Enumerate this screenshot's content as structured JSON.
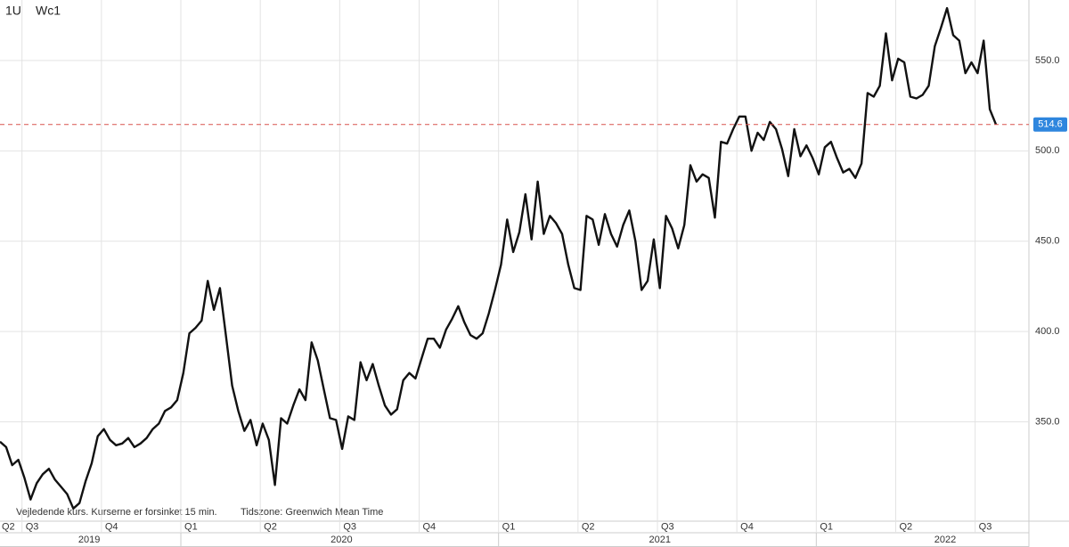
{
  "header": {
    "symbol": "1U",
    "name": "Wc1"
  },
  "footer": {
    "note": "Vejledende kurs. Kurserne er forsinket 15 min.",
    "timezone": "Tidszone: Greenwich Mean Time"
  },
  "chart_data": {
    "type": "line",
    "grid": true,
    "ylim": [
      295,
      583.5
    ],
    "xlim": [
      0,
      168.4
    ],
    "yticks": [
      {
        "value": 350,
        "label": "350.0"
      },
      {
        "value": 400,
        "label": "400.0"
      },
      {
        "value": 450,
        "label": "450.0"
      },
      {
        "value": 500,
        "label": "500.0"
      },
      {
        "value": 550,
        "label": "550.0"
      }
    ],
    "xticks": [
      {
        "value": -9.4,
        "label": "Q2"
      },
      {
        "value": 3.6,
        "label": "Q3"
      },
      {
        "value": 16.6,
        "label": "Q4"
      },
      {
        "value": 29.6,
        "label": "Q1"
      },
      {
        "value": 42.6,
        "label": "Q2"
      },
      {
        "value": 55.6,
        "label": "Q3"
      },
      {
        "value": 68.6,
        "label": "Q4"
      },
      {
        "value": 81.6,
        "label": "Q1"
      },
      {
        "value": 94.6,
        "label": "Q2"
      },
      {
        "value": 107.6,
        "label": "Q3"
      },
      {
        "value": 120.6,
        "label": "Q4"
      },
      {
        "value": 133.6,
        "label": "Q1"
      },
      {
        "value": 146.6,
        "label": "Q2"
      },
      {
        "value": 159.6,
        "label": "Q3"
      }
    ],
    "year_labels": [
      {
        "value": 14.6,
        "label": "2019"
      },
      {
        "value": 55.9,
        "label": "2020"
      },
      {
        "value": 108,
        "label": "2021"
      },
      {
        "value": 154.7,
        "label": "2022"
      }
    ],
    "reference_color": "#d9534f",
    "marker_color": "#2e86de",
    "x": [
      0,
      1,
      2,
      3,
      4,
      5,
      6,
      7,
      8,
      9,
      10,
      11,
      12,
      13,
      14,
      15,
      16,
      17,
      18,
      19,
      20,
      21,
      22,
      23,
      24,
      25,
      26,
      27,
      28,
      29,
      30,
      31,
      32,
      33,
      34,
      35,
      36,
      37,
      38,
      39,
      40,
      41,
      42,
      43,
      44,
      45,
      46,
      47,
      48,
      49,
      50,
      51,
      52,
      53,
      54,
      55,
      56,
      57,
      58,
      59,
      60,
      61,
      62,
      63,
      64,
      65,
      66,
      67,
      68,
      69,
      70,
      71,
      72,
      73,
      74,
      75,
      76,
      77,
      78,
      79,
      80,
      81,
      82,
      83,
      84,
      85,
      86,
      87,
      88,
      89,
      90,
      91,
      92,
      93,
      94,
      95,
      96,
      97,
      98,
      99,
      100,
      101,
      102,
      103,
      104,
      105,
      106,
      107,
      108,
      109,
      110,
      111,
      112,
      113,
      114,
      115,
      116,
      117,
      118,
      119,
      120,
      121,
      122,
      123,
      124,
      125,
      126,
      127,
      128,
      129,
      130,
      131,
      132,
      133,
      134,
      135,
      136,
      137,
      138,
      139,
      140,
      141,
      142,
      143,
      144,
      145,
      146,
      147,
      148,
      149,
      150,
      151,
      152,
      153,
      154,
      155,
      156,
      157,
      158,
      159,
      160,
      161,
      162,
      163
    ],
    "series": [
      {
        "name": "Wc1",
        "color": "#111111",
        "values": [
          339,
          336,
          326,
          329,
          319,
          307,
          316,
          321,
          324,
          318,
          314,
          310,
          302,
          305,
          317,
          327,
          342,
          346,
          340,
          337,
          338,
          341,
          336,
          338,
          341,
          346,
          349,
          356,
          358,
          362,
          377,
          399,
          402,
          406,
          428,
          412,
          424,
          397,
          370,
          356,
          345,
          351,
          337,
          349,
          340,
          315,
          352,
          349,
          359,
          368,
          362,
          394,
          384,
          368,
          352,
          351,
          335,
          353,
          351,
          383,
          373,
          382,
          370,
          359,
          354,
          357,
          373,
          377,
          374,
          385,
          396,
          396,
          391,
          401,
          407,
          414,
          405,
          398,
          396,
          399,
          410,
          423,
          437,
          462,
          444,
          455,
          476,
          451,
          483,
          454,
          464,
          460,
          454,
          437,
          424,
          423,
          464,
          462,
          448,
          465,
          454,
          447,
          459,
          467,
          450,
          423,
          428,
          451,
          424,
          464,
          457,
          446,
          459,
          492,
          483,
          487,
          485,
          463,
          505,
          504,
          512,
          519,
          519,
          500,
          510,
          506,
          516,
          512,
          501,
          486,
          512,
          497,
          503,
          496,
          487,
          502,
          505,
          496,
          488,
          490,
          485,
          493,
          532,
          530,
          536,
          565,
          539,
          551,
          549,
          530,
          529,
          531,
          536,
          558,
          568,
          579,
          564,
          561,
          543,
          549,
          543,
          561,
          523,
          514.6
        ]
      }
    ]
  }
}
